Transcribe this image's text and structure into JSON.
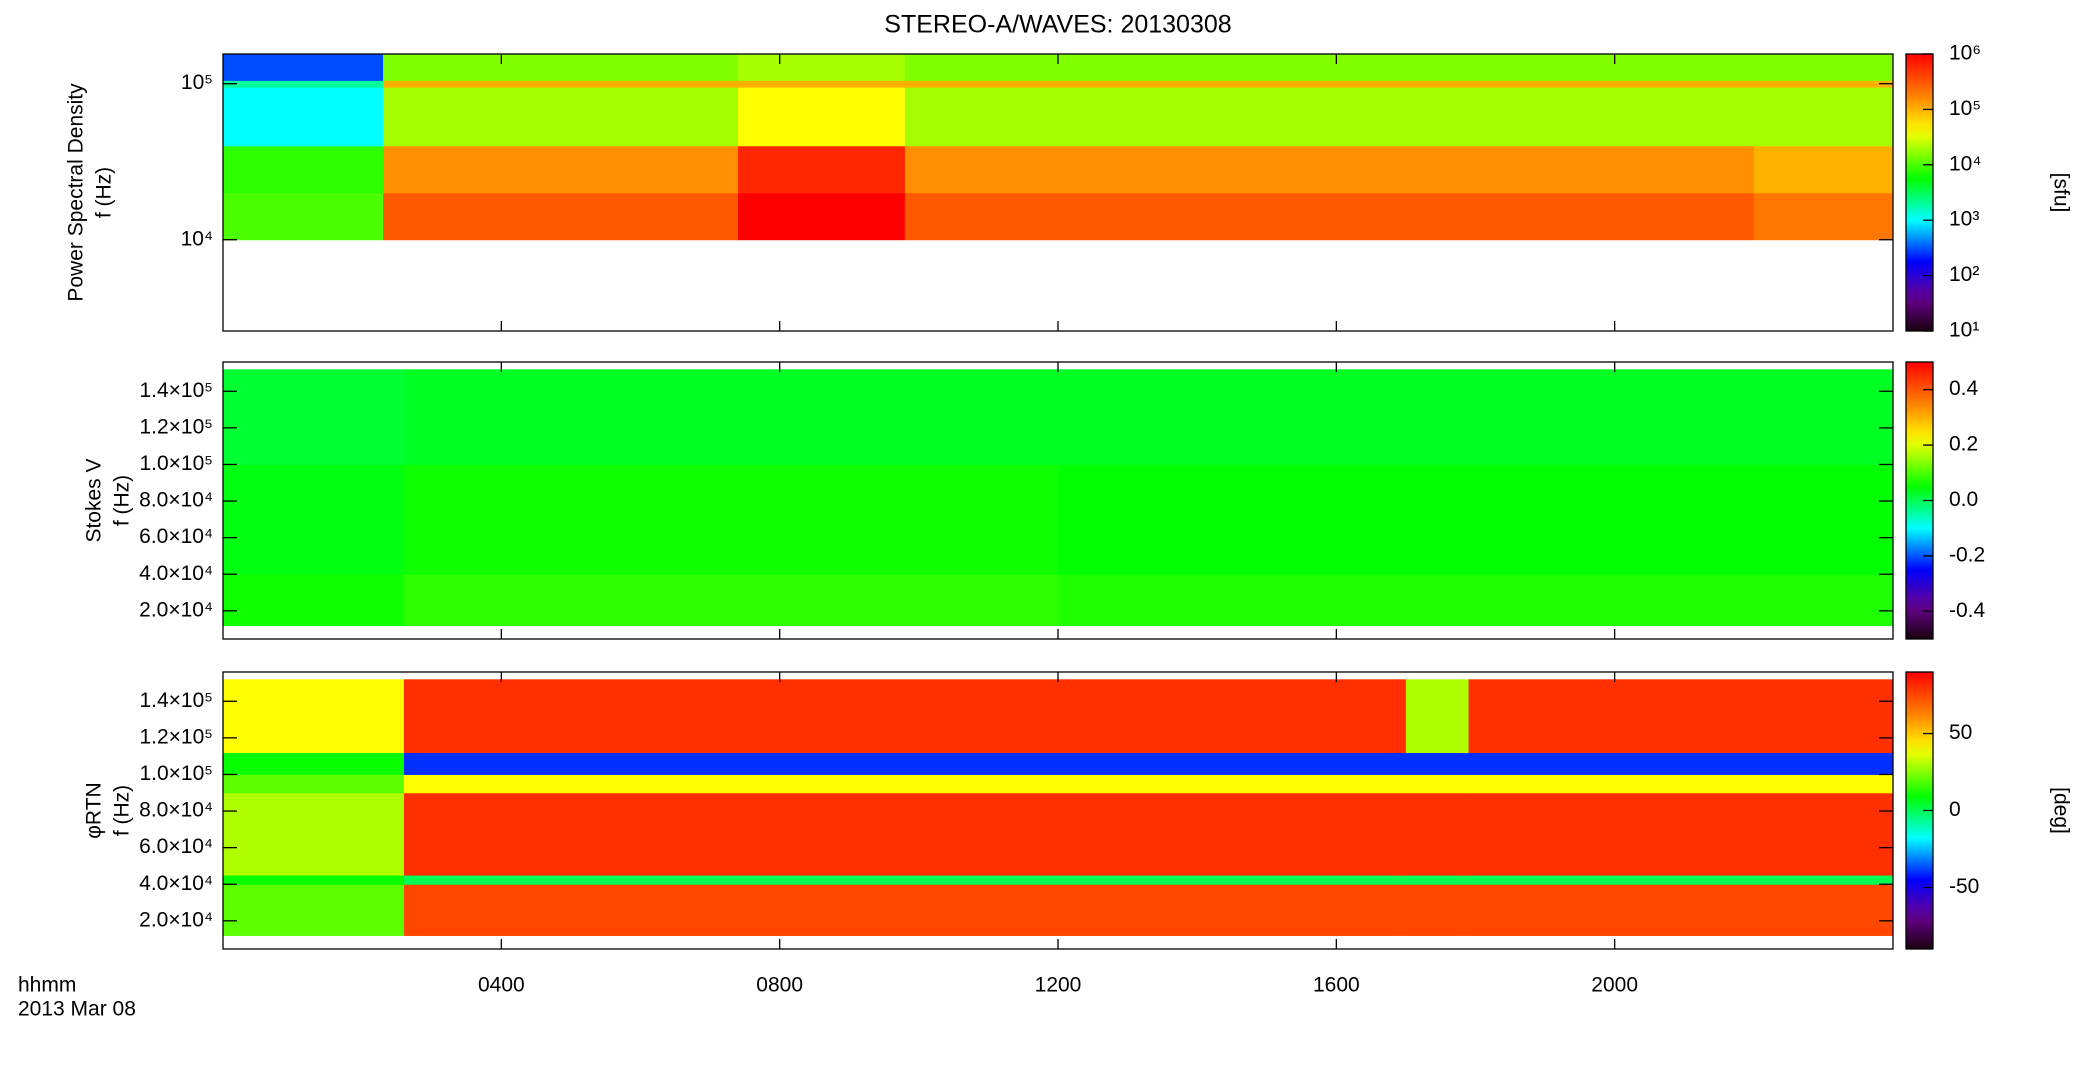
{
  "chart_data": [
    {
      "type": "heatmap",
      "title": "STEREO-A/WAVES: 20130308",
      "ylabel_lines": [
        "Power Spectral Density",
        "f (Hz)"
      ],
      "xlim": [
        0,
        24
      ],
      "xticks": [
        4,
        8,
        12,
        16,
        20
      ],
      "ylog": true,
      "ylim": [
        2600,
        155000
      ],
      "yticks": [
        {
          "value": 10000,
          "label": "10⁴"
        },
        {
          "value": 100000,
          "label": "10⁵"
        }
      ],
      "x_edges": [
        0,
        2.3,
        7.4,
        9.8,
        22,
        24
      ],
      "y_edges": [
        10000,
        20000,
        40000,
        95000,
        105000,
        155000
      ],
      "z": [
        [
          10000,
          300000,
          1000000,
          300000,
          200000
        ],
        [
          8000,
          150000,
          600000,
          150000,
          100000
        ],
        [
          1000,
          20000,
          40000,
          20000,
          20000
        ],
        [
          2000,
          100000,
          100000,
          100000,
          100000
        ],
        [
          300,
          15000,
          20000,
          15000,
          15000
        ]
      ],
      "colormap": "rainbow",
      "zlog": true,
      "zlim": [
        10,
        1000000
      ],
      "zticks": [
        {
          "value": 10,
          "label": "10¹"
        },
        {
          "value": 100,
          "label": "10²"
        },
        {
          "value": 1000,
          "label": "10³"
        },
        {
          "value": 10000,
          "label": "10⁴"
        },
        {
          "value": 100000,
          "label": "10⁵"
        },
        {
          "value": 1000000,
          "label": "10⁶"
        }
      ],
      "zlabel": "[sfu]"
    },
    {
      "type": "heatmap",
      "ylabel_lines": [
        "Stokes V",
        "f (Hz)"
      ],
      "xlim": [
        0,
        24
      ],
      "xticks": [
        4,
        8,
        12,
        16,
        20
      ],
      "ylog": false,
      "ylim": [
        4600,
        156000
      ],
      "yticks": [
        {
          "value": 20000,
          "label": "2.0×10⁴"
        },
        {
          "value": 40000,
          "label": "4.0×10⁴"
        },
        {
          "value": 60000,
          "label": "6.0×10⁴"
        },
        {
          "value": 80000,
          "label": "8.0×10⁴"
        },
        {
          "value": 100000,
          "label": "1.0×10⁵"
        },
        {
          "value": 120000,
          "label": "1.2×10⁵"
        },
        {
          "value": 140000,
          "label": "1.4×10⁵"
        }
      ],
      "x_edges": [
        0,
        2.6,
        12,
        24
      ],
      "y_edges": [
        12000,
        40000,
        100000,
        152000
      ],
      "z": [
        [
          0.06,
          0.08,
          0.07
        ],
        [
          0.04,
          0.06,
          0.05
        ],
        [
          0.02,
          0.03,
          0.03
        ]
      ],
      "colormap": "rainbow",
      "zlog": false,
      "zlim": [
        -0.5,
        0.5
      ],
      "zticks": [
        -0.4,
        -0.2,
        {
          "value": 0,
          "label": "0.0"
        },
        0.2,
        0.4
      ]
    },
    {
      "type": "heatmap",
      "ylabel_lines": [
        "φRTN",
        "f (Hz)"
      ],
      "xlabel_lines": [
        "hhmm",
        "2013 Mar 08"
      ],
      "xlim": [
        0,
        24
      ],
      "xticks": [
        {
          "value": 4,
          "label": "0400"
        },
        {
          "value": 8,
          "label": "0800"
        },
        {
          "value": 12,
          "label": "1200"
        },
        {
          "value": 16,
          "label": "1600"
        },
        {
          "value": 20,
          "label": "2000"
        }
      ],
      "ylog": false,
      "ylim": [
        4600,
        156000
      ],
      "yticks": [
        {
          "value": 20000,
          "label": "2.0×10⁴"
        },
        {
          "value": 40000,
          "label": "4.0×10⁴"
        },
        {
          "value": 60000,
          "label": "6.0×10⁴"
        },
        {
          "value": 80000,
          "label": "8.0×10⁴"
        },
        {
          "value": 100000,
          "label": "1.0×10⁵"
        },
        {
          "value": 120000,
          "label": "1.2×10⁵"
        },
        {
          "value": 140000,
          "label": "1.4×10⁵"
        }
      ],
      "x_edges": [
        0,
        2.6,
        17,
        17.9,
        24
      ],
      "y_edges": [
        12000,
        40000,
        45000,
        90000,
        100000,
        112000,
        152000
      ],
      "z": [
        [
          20,
          75,
          75,
          75
        ],
        [
          10,
          0,
          0,
          0
        ],
        [
          30,
          80,
          80,
          80
        ],
        [
          20,
          40,
          40,
          40
        ],
        [
          10,
          -40,
          -40,
          -40
        ],
        [
          40,
          80,
          30,
          80
        ]
      ],
      "colormap": "rainbow",
      "zlog": false,
      "zlim": [
        -90,
        90
      ],
      "zticks": [
        -50,
        0,
        50
      ],
      "zlabel": "[deg]"
    }
  ]
}
